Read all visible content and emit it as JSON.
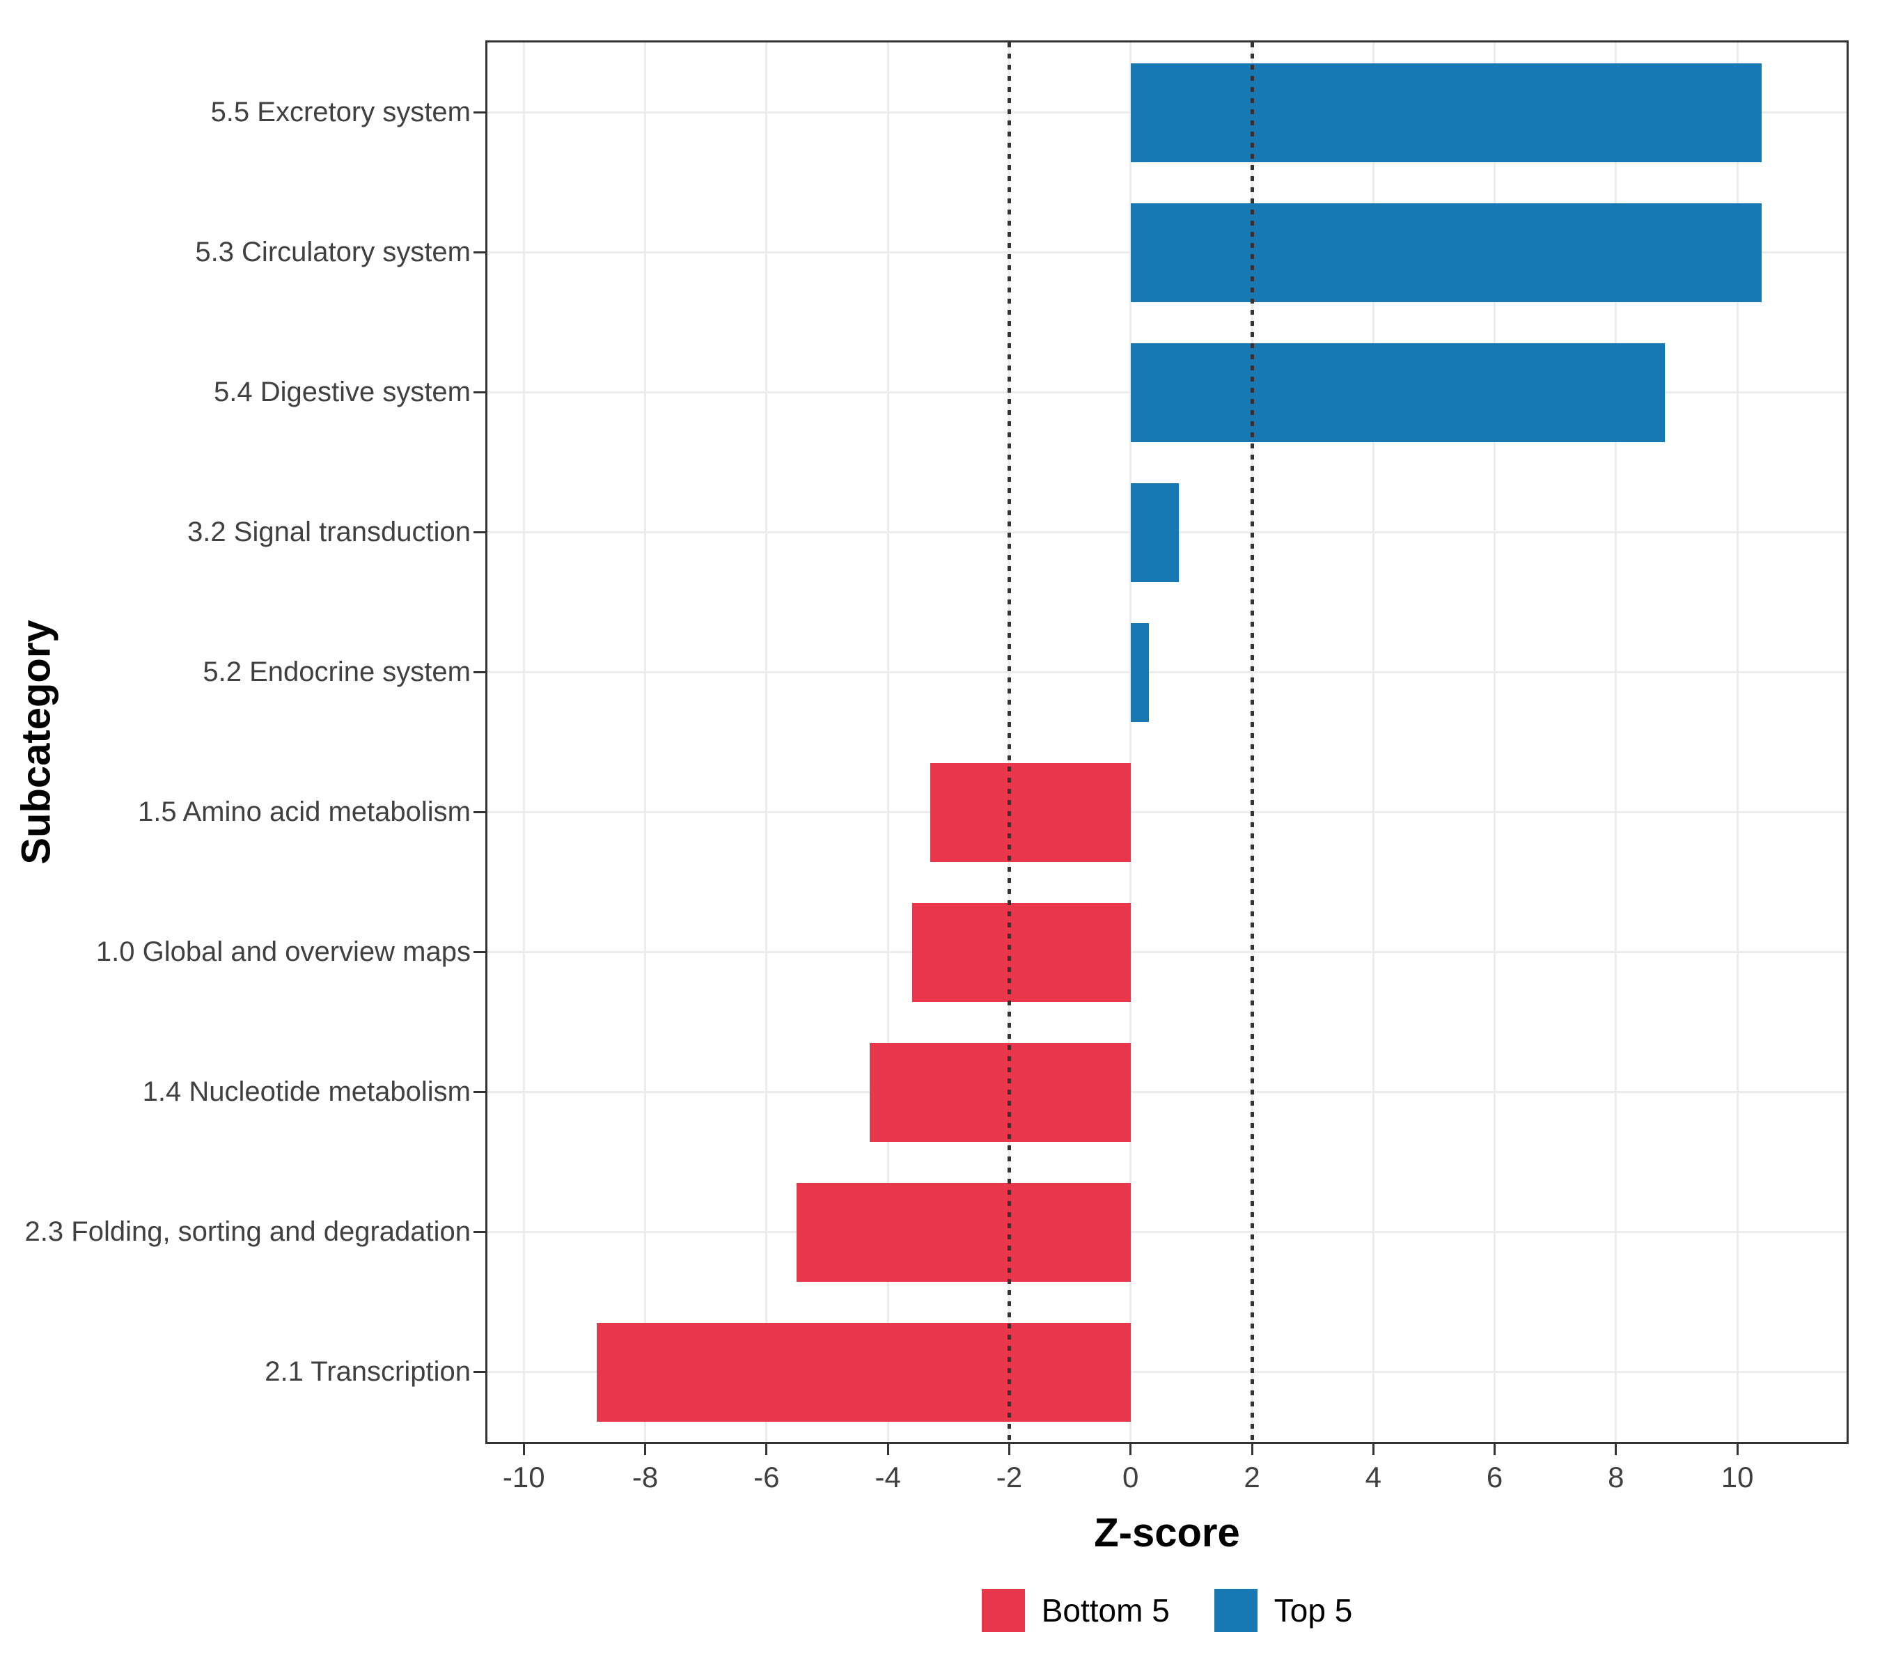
{
  "chart_data": {
    "type": "bar",
    "orientation": "horizontal",
    "title": "",
    "xlabel": "Z-score",
    "ylabel": "Subcategory",
    "xlim": [
      -10.6,
      11.8
    ],
    "xticks": [
      -10,
      -8,
      -6,
      -4,
      -2,
      0,
      2,
      4,
      6,
      8,
      10
    ],
    "reference_lines": [
      -2,
      2
    ],
    "grid": true,
    "legend_position": "bottom",
    "categories": [
      "5.5 Excretory system",
      "5.3 Circulatory system",
      "5.4 Digestive system",
      "3.2 Signal transduction",
      "5.2 Endocrine system",
      "1.5 Amino acid metabolism",
      "1.0 Global and overview maps",
      "1.4 Nucleotide metabolism",
      "2.3 Folding, sorting and degradation",
      "2.1 Transcription"
    ],
    "values": [
      10.4,
      10.4,
      8.8,
      0.8,
      0.3,
      -3.3,
      -3.6,
      -4.3,
      -5.5,
      -8.8
    ],
    "groups": [
      "Top 5",
      "Top 5",
      "Top 5",
      "Top 5",
      "Top 5",
      "Bottom 5",
      "Bottom 5",
      "Bottom 5",
      "Bottom 5",
      "Bottom 5"
    ],
    "legend": [
      {
        "label": "Bottom 5",
        "color": "#E8364A"
      },
      {
        "label": "Top 5",
        "color": "#1878B4"
      }
    ],
    "colors": {
      "bottom5": "#E8364A",
      "top5": "#1878B4",
      "reference_line": "#333333",
      "panel_border": "#333333",
      "grid": "#ECECEC",
      "axis_text": "#404040"
    }
  }
}
